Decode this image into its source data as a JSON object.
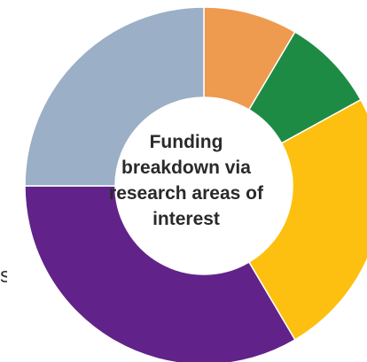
{
  "chart_data": {
    "type": "donut",
    "title": "Funding breakdown via research areas of interest",
    "slices": [
      {
        "value": 8.5,
        "color": "#EE9A4F"
      },
      {
        "value": 8.5,
        "color": "#1E8B45"
      },
      {
        "value": 24.5,
        "color": "#FDC010"
      },
      {
        "value": 33.5,
        "color": "#612289"
      },
      {
        "value": 25.0,
        "color": "#9BAFC6"
      }
    ],
    "start_angle_deg": 0,
    "direction": "clockwise"
  },
  "edge_text": "s"
}
